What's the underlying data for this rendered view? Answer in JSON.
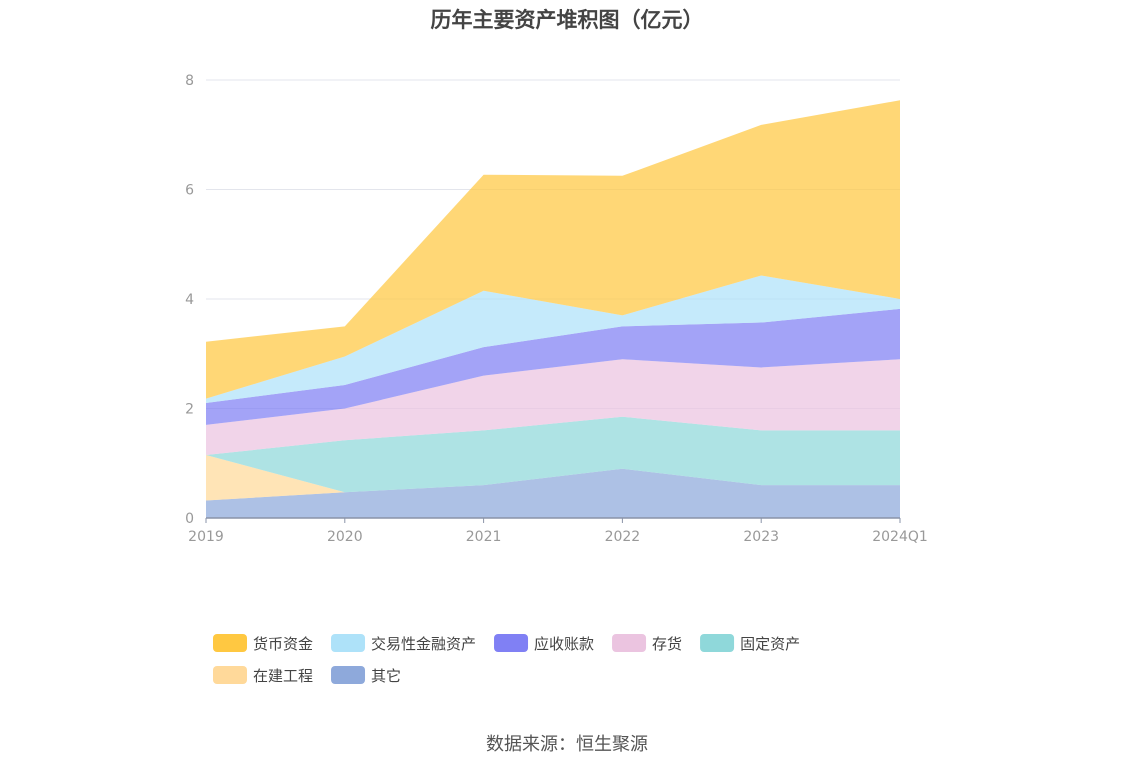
{
  "chart_data": {
    "type": "area",
    "stacked": true,
    "title": "历年主要资产堆积图（亿元）",
    "categories": [
      "2019",
      "2020",
      "2021",
      "2022",
      "2023",
      "2024Q1"
    ],
    "ylim": [
      0,
      8
    ],
    "yticks": [
      0,
      2,
      4,
      6,
      8
    ],
    "xlabel": "",
    "ylabel": "",
    "grid": true,
    "legend_position": "bottom",
    "series": [
      {
        "name": "其它",
        "color": "#8EA9DB",
        "values": [
          0.32,
          0.47,
          0.6,
          0.9,
          0.6,
          0.6
        ]
      },
      {
        "name": "在建工程",
        "color": "#FFD99A",
        "values": [
          0.83,
          0.0,
          0.0,
          0.0,
          0.0,
          0.0
        ]
      },
      {
        "name": "固定资产",
        "color": "#8FD8DA",
        "values": [
          0.0,
          0.95,
          1.0,
          0.95,
          1.0,
          1.0
        ]
      },
      {
        "name": "存货",
        "color": "#EBC4E0",
        "values": [
          0.55,
          0.58,
          1.0,
          1.05,
          1.15,
          1.3
        ]
      },
      {
        "name": "应收账款",
        "color": "#8080F4",
        "values": [
          0.4,
          0.43,
          0.52,
          0.6,
          0.82,
          0.92
        ]
      },
      {
        "name": "交易性金融资产",
        "color": "#AEE2F9",
        "values": [
          0.08,
          0.52,
          1.03,
          0.2,
          0.86,
          0.18
        ]
      },
      {
        "name": "货币资金",
        "color": "#FFC841",
        "values": [
          1.04,
          0.55,
          2.12,
          2.55,
          2.75,
          3.63
        ]
      }
    ],
    "legend_order": [
      "货币资金",
      "交易性金融资产",
      "应收账款",
      "存货",
      "固定资产",
      "在建工程",
      "其它"
    ]
  },
  "source": "数据来源：恒生聚源"
}
